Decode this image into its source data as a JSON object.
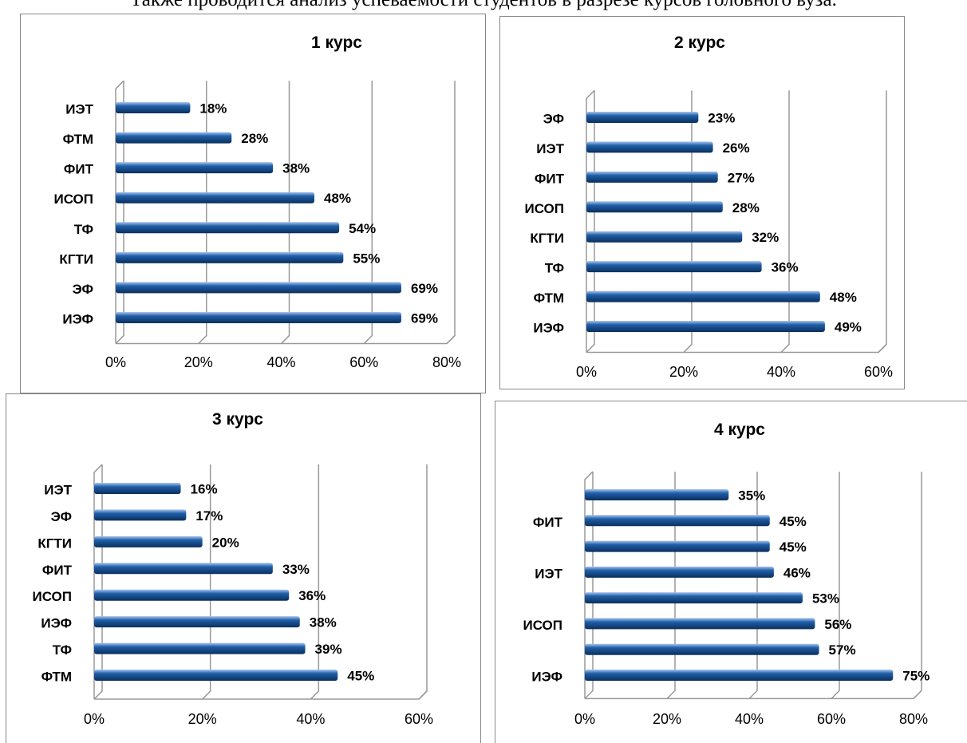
{
  "text": "Также проводится анализ успеваемости студентов в разрезе курсов головного вуза.",
  "chart_data": [
    {
      "type": "bar",
      "horizontal": true,
      "title": "1 курс",
      "categories": [
        "ИЭТ",
        "ФТМ",
        "ФИТ",
        "ИСОП",
        "ТФ",
        "КГТИ",
        "ЭФ",
        "ИЭФ"
      ],
      "values": [
        18,
        28,
        38,
        48,
        54,
        55,
        69,
        69
      ],
      "value_labels": [
        "18%",
        "28%",
        "38%",
        "48%",
        "54%",
        "55%",
        "69%",
        "69%"
      ],
      "color": "#1f5fa8",
      "xlim": [
        0,
        80
      ],
      "xticks": [
        {
          "value": 0,
          "label": "0%"
        },
        {
          "value": 20,
          "label": "20%"
        },
        {
          "value": 40,
          "label": "40%"
        },
        {
          "value": 60,
          "label": "60%"
        },
        {
          "value": 80,
          "label": "80%"
        }
      ],
      "grid": true
    },
    {
      "type": "bar",
      "horizontal": true,
      "title": "2 курс",
      "categories": [
        "ЭФ",
        "ИЭТ",
        "ФИТ",
        "ИСОП",
        "КГТИ",
        "ТФ",
        "ФТМ",
        "ИЭФ"
      ],
      "values": [
        23,
        26,
        27,
        28,
        32,
        36,
        48,
        49
      ],
      "value_labels": [
        "23%",
        "26%",
        "27%",
        "28%",
        "32%",
        "36%",
        "48%",
        "49%"
      ],
      "color": "#1f5fa8",
      "xlim": [
        0,
        60
      ],
      "xticks": [
        {
          "value": 0,
          "label": "0%"
        },
        {
          "value": 20,
          "label": "20%"
        },
        {
          "value": 40,
          "label": "40%"
        },
        {
          "value": 60,
          "label": "60%"
        }
      ],
      "grid": true
    },
    {
      "type": "bar",
      "horizontal": true,
      "title": "3 курс",
      "categories": [
        "ИЭТ",
        "ЭФ",
        "КГТИ",
        "ФИТ",
        "ИСОП",
        "ИЭФ",
        "ТФ",
        "ФТМ"
      ],
      "values": [
        16,
        17,
        20,
        33,
        36,
        38,
        39,
        45
      ],
      "value_labels": [
        "16%",
        "17%",
        "20%",
        "33%",
        "36%",
        "38%",
        "39%",
        "45%"
      ],
      "color": "#1f5fa8",
      "xlim": [
        0,
        60
      ],
      "xticks": [
        {
          "value": 0,
          "label": "0%"
        },
        {
          "value": 20,
          "label": "20%"
        },
        {
          "value": 40,
          "label": "40%"
        },
        {
          "value": 60,
          "label": "60%"
        }
      ],
      "grid": true
    },
    {
      "type": "bar",
      "horizontal": true,
      "title": "4 курс",
      "categories": [
        null,
        "ФИТ",
        null,
        "ИЭТ",
        null,
        "ИСОП",
        null,
        "ИЭФ"
      ],
      "values": [
        35,
        45,
        45,
        46,
        53,
        56,
        57,
        75
      ],
      "value_labels": [
        "35%",
        "45%",
        "45%",
        "46%",
        "53%",
        "56%",
        "57%",
        "75%"
      ],
      "color": "#1f5fa8",
      "xlim": [
        0,
        80
      ],
      "xticks": [
        {
          "value": 0,
          "label": "0%"
        },
        {
          "value": 20,
          "label": "20%"
        },
        {
          "value": 40,
          "label": "40%"
        },
        {
          "value": 60,
          "label": "60%"
        },
        {
          "value": 80,
          "label": "80%"
        }
      ],
      "grid": true
    }
  ]
}
